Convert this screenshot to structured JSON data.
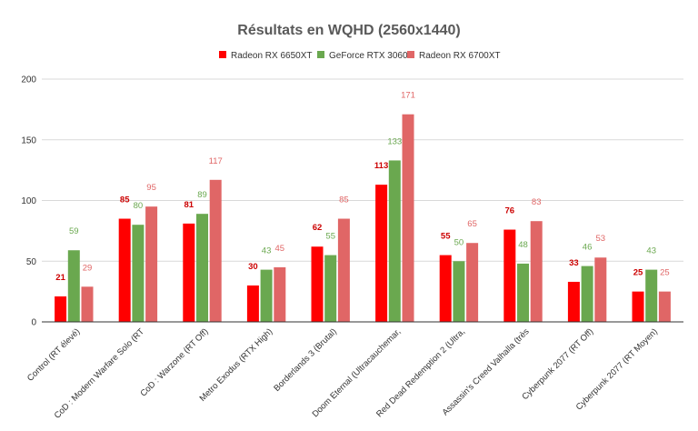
{
  "chart_data": {
    "type": "bar",
    "title": "Résultats en WQHD (2560x1440)",
    "xlabel": "",
    "ylabel": "",
    "ylim": [
      0,
      200
    ],
    "yticks": [
      0,
      50,
      100,
      150,
      200
    ],
    "grid": true,
    "legend_position": "top-center",
    "categories": [
      "Control (RT élevé)",
      "CoD : Modern Warfare Solo (RT",
      "CoD : Warzone (RT Off)",
      "Metro Exodus (RTX High)",
      "Borderlands 3 (Brutal)",
      "Doom Eternal (Ultracauchemar,",
      "Red Dead Redemption 2 (Ultra,",
      "Assassin's Creed Valhalla (très",
      "Cyberpunk 2077 (RT Off)",
      "Cyberpunk 2077 (RT Moyen)"
    ],
    "series": [
      {
        "name": "Radeon RX 6650XT",
        "color": "#ff0000",
        "label_color": "#cc0000",
        "label_bold": true,
        "values": [
          21,
          85,
          81,
          30,
          62,
          113,
          55,
          76,
          33,
          25
        ]
      },
      {
        "name": "GeForce RTX 3060",
        "color": "#6aa84f",
        "label_color": "#6aa84f",
        "label_bold": false,
        "values": [
          59,
          80,
          89,
          43,
          55,
          133,
          50,
          48,
          46,
          43
        ]
      },
      {
        "name": "Radeon RX 6700XT",
        "color": "#e06666",
        "label_color": "#e06666",
        "label_bold": false,
        "values": [
          29,
          95,
          117,
          45,
          85,
          171,
          65,
          83,
          53,
          25
        ]
      }
    ]
  }
}
